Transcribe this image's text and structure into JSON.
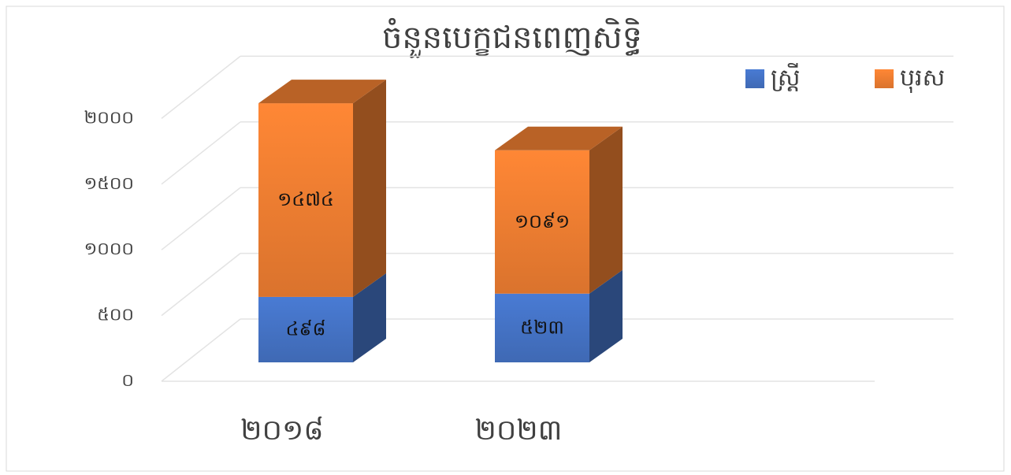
{
  "chart_data": {
    "type": "bar3d_stacked",
    "title": "ចំនួនបេក្ខជនពេញសិទ្ធិ",
    "categories": [
      "២០១៨",
      "២០២៣"
    ],
    "series": [
      {
        "name": "ស្រ្តី",
        "color": "#4472c4",
        "values": [
          498,
          523
        ],
        "value_labels": [
          "៤៩៨",
          "៥២៣"
        ]
      },
      {
        "name": "បុរស",
        "color": "#ed7d31",
        "values": [
          1474,
          1091
        ],
        "value_labels": [
          "១៤៧៤",
          "១០៩១"
        ]
      }
    ],
    "ylim": [
      0,
      2000
    ],
    "yticks": [
      {
        "value": 0,
        "label": "០"
      },
      {
        "value": 500,
        "label": "៥០០"
      },
      {
        "value": 1000,
        "label": "១០០០"
      },
      {
        "value": 1500,
        "label": "១៥០០"
      },
      {
        "value": 2000,
        "label": "២០០០"
      }
    ],
    "grid": true,
    "legend": "top-right"
  }
}
